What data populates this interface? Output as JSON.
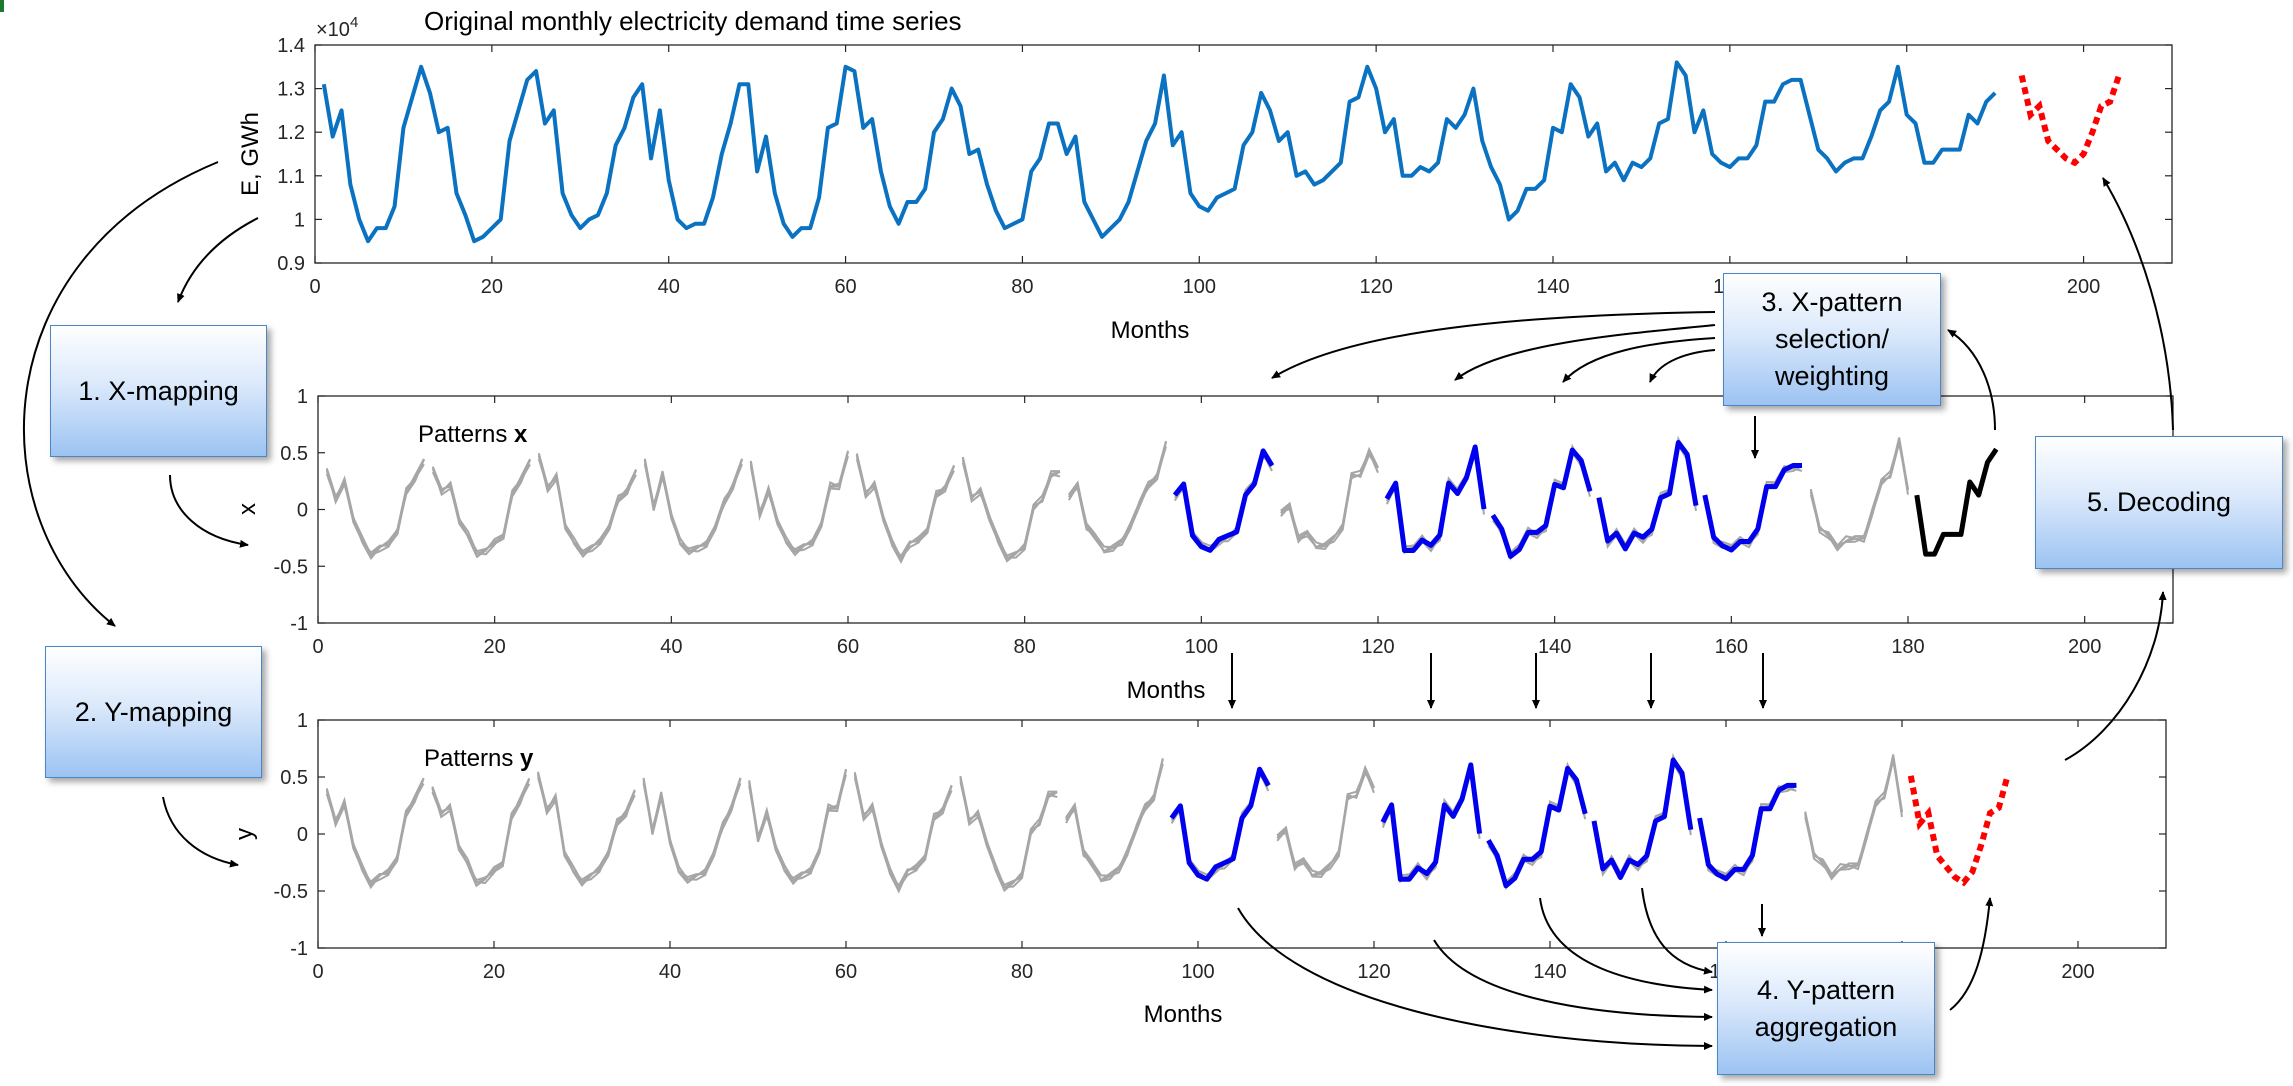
{
  "top_chart": {
    "title": "Original monthly electricity demand time series",
    "exponent_base": "×10",
    "exponent_power": "4",
    "ylabel": "E, GWh",
    "xlabel": "Months",
    "xticks": [
      "0",
      "20",
      "40",
      "60",
      "80",
      "100",
      "120",
      "140",
      "160",
      "180",
      "200"
    ],
    "yticks": [
      "0.9",
      "1",
      "1.1",
      "1.2",
      "1.3",
      "1.4"
    ],
    "line_color": "#0a72c0",
    "forecast_color": "#ff0000"
  },
  "middle_chart": {
    "inner_label_prefix": "Patterns ",
    "inner_label_var": "x",
    "ylabel": "x",
    "xlabel": "Months",
    "xticks": [
      "0",
      "20",
      "40",
      "60",
      "80",
      "100",
      "120",
      "140",
      "160",
      "180",
      "200"
    ],
    "yticks": [
      "-1",
      "-0.5",
      "0",
      "0.5",
      "1"
    ]
  },
  "bottom_chart": {
    "inner_label_prefix": "Patterns ",
    "inner_label_var": "y",
    "ylabel": "y",
    "xlabel": "Months",
    "xticks": [
      "0",
      "20",
      "40",
      "60",
      "80",
      "100",
      "120",
      "140",
      "160",
      "180",
      "200"
    ],
    "yticks": [
      "-1",
      "-0.5",
      "0",
      "0.5",
      "1"
    ]
  },
  "boxes": {
    "x_mapping": "1. X-mapping",
    "y_mapping": "2. Y-mapping",
    "x_pattern": "3. X-pattern\nselection/\nweighting",
    "y_pattern": "4. Y-pattern\naggregation",
    "decoding": "5. Decoding"
  },
  "colors": {
    "pattern_gray": "#a6a6a6",
    "selected_blue": "#0000ee",
    "query_black": "#000000",
    "forecast_red": "#ff0000",
    "box_border": "#4a86c5"
  },
  "chart_data": [
    {
      "type": "line",
      "title": "Original monthly electricity demand time series",
      "xlabel": "Months",
      "ylabel": "E, GWh",
      "y_multiplier": "×10^4",
      "xlim": [
        0,
        210
      ],
      "ylim": [
        0.9,
        1.4
      ],
      "series": [
        {
          "values": [
            1.31,
            1.19,
            1.25,
            1.08,
            1.0,
            0.95,
            0.98,
            0.98,
            1.03,
            1.21,
            1.28,
            1.35,
            1.29,
            1.2,
            1.21,
            1.06,
            1.01,
            0.95,
            0.96,
            0.98,
            1.0,
            1.18,
            1.25,
            1.32,
            1.34,
            1.22,
            1.25,
            1.06,
            1.01,
            0.98,
            1.0,
            1.01,
            1.06,
            1.17,
            1.21,
            1.28,
            1.31,
            1.14,
            1.25,
            1.09,
            1.0,
            0.98,
            0.99,
            0.99,
            1.05,
            1.15,
            1.22,
            1.31,
            1.31,
            1.11,
            1.19,
            1.06,
            0.99,
            0.96,
            0.98,
            0.98,
            1.05,
            1.21,
            1.22,
            1.35,
            1.34,
            1.21,
            1.23,
            1.11,
            1.03,
            0.99,
            1.04,
            1.04,
            1.07,
            1.2,
            1.23,
            1.3,
            1.26,
            1.15,
            1.16,
            1.08,
            1.02,
            0.98,
            0.99,
            1.0,
            1.11,
            1.14,
            1.22,
            1.22,
            1.15,
            1.19,
            1.04,
            1.0,
            0.96,
            0.98,
            1.0,
            1.04,
            1.11,
            1.18,
            1.22,
            1.33,
            1.17,
            1.2,
            1.06,
            1.03,
            1.02,
            1.05,
            1.06,
            1.07,
            1.17,
            1.2,
            1.29,
            1.25,
            1.18,
            1.2,
            1.1,
            1.11,
            1.08,
            1.09,
            1.11,
            1.13,
            1.27,
            1.28,
            1.35,
            1.3,
            1.2,
            1.23,
            1.1,
            1.1,
            1.12,
            1.11,
            1.13,
            1.23,
            1.21,
            1.24,
            1.3,
            1.18,
            1.12,
            1.08,
            1.0,
            1.02,
            1.07,
            1.07,
            1.09,
            1.21,
            1.2,
            1.31,
            1.28,
            1.19,
            1.22,
            1.11,
            1.13,
            1.09,
            1.13,
            1.12,
            1.14,
            1.22,
            1.23,
            1.36,
            1.33,
            1.2,
            1.25,
            1.15,
            1.13,
            1.12,
            1.14,
            1.14,
            1.17,
            1.27,
            1.27,
            1.31,
            1.32,
            1.32,
            1.24,
            1.16,
            1.14,
            1.11,
            1.13,
            1.14,
            1.14,
            1.19,
            1.25,
            1.27,
            1.35,
            1.24,
            1.22,
            1.13,
            1.13,
            1.16,
            1.16,
            1.16,
            1.24,
            1.22,
            1.27,
            1.29
          ]
        },
        {
          "name": "forecast",
          "x": [
            193,
            194,
            195,
            196,
            197,
            198,
            199,
            200,
            201,
            202,
            203,
            204
          ],
          "values": [
            1.33,
            1.24,
            1.26,
            1.18,
            1.16,
            1.14,
            1.13,
            1.15,
            1.2,
            1.26,
            1.27,
            1.33
          ]
        }
      ]
    },
    {
      "type": "line",
      "xlabel": "Months",
      "ylabel": "x",
      "xlim": [
        0,
        210
      ],
      "ylim": [
        -1,
        1
      ],
      "gray_range": [
        1,
        180
      ],
      "blue_segments": [
        [
          97,
          108
        ],
        [
          121,
          132
        ],
        [
          133,
          144
        ],
        [
          145,
          156
        ],
        [
          157,
          168
        ]
      ],
      "query_range": [
        181,
        192
      ]
    },
    {
      "type": "line",
      "xlabel": "Months",
      "ylabel": "y",
      "xlim": [
        0,
        210
      ],
      "ylim": [
        -1,
        1
      ],
      "gray_range": [
        1,
        180
      ],
      "blue_segments": [
        [
          97,
          108
        ],
        [
          121,
          132
        ],
        [
          133,
          144
        ],
        [
          145,
          156
        ],
        [
          157,
          168
        ]
      ],
      "forecast_range": [
        181,
        192
      ]
    }
  ]
}
